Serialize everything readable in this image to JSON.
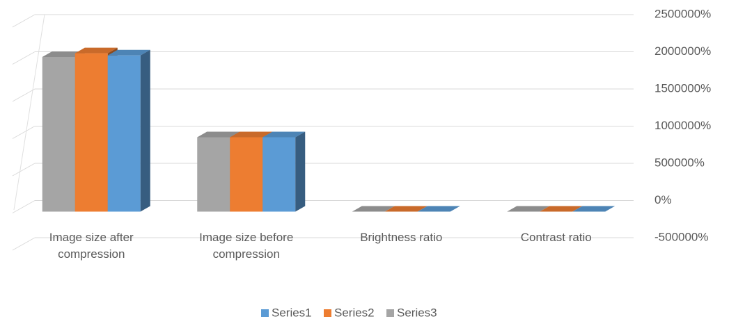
{
  "chart_data": {
    "type": "bar3d",
    "categories": [
      "Image size after compression",
      "Image size before compression",
      "Brightness ratio",
      "Contrast ratio"
    ],
    "series": [
      {
        "name": "Series1",
        "color": "#5b9bd5",
        "values": [
          2100000,
          1000000,
          0,
          0
        ]
      },
      {
        "name": "Series2",
        "color": "#ed7d31",
        "values": [
          2130000,
          1000000,
          0,
          0
        ]
      },
      {
        "name": "Series3",
        "color": "#a5a5a5",
        "values": [
          2080000,
          1000000,
          0,
          0
        ]
      }
    ],
    "ylim": [
      -500000,
      2500000
    ],
    "yticks": [
      {
        "value": -500000,
        "label": "-500000%"
      },
      {
        "value": 0,
        "label": "0%"
      },
      {
        "value": 500000,
        "label": "500000%"
      },
      {
        "value": 1000000,
        "label": "1000000%"
      },
      {
        "value": 1500000,
        "label": "1500000%"
      },
      {
        "value": 2000000,
        "label": "2000000%"
      },
      {
        "value": 2500000,
        "label": "2500000%"
      }
    ],
    "grid": true,
    "legend": "bottom"
  }
}
